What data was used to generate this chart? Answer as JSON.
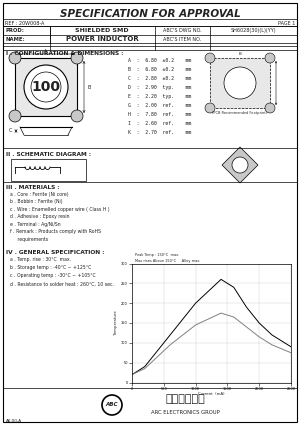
{
  "title": "SPECIFICATION FOR APPROVAL",
  "ref": "REF : 20W008-A",
  "page": "PAGE 1",
  "prod_label": "PROD:",
  "prod_value": "SHIELDED SMD",
  "name_label": "NAME:",
  "name_value": "POWER INDUCTOR",
  "abcs_dwo": "ABC'S DWG NO.",
  "abcs_item": "ABC'S ITEM NO.",
  "item_no": "SH6028(30)(L)(YY)",
  "section1": "I . CONFIGURATION & DIMENSIONS :",
  "dim_labels": [
    "A",
    "B",
    "C",
    "D",
    "E",
    "G",
    "H",
    "I",
    "K"
  ],
  "dim_vals": [
    "6.80",
    "6.80",
    "2.80",
    "2.90",
    "2.20",
    "2.00",
    "7.80",
    "2.60",
    "2.70"
  ],
  "dim_tols": [
    "±0.2",
    "±0.2",
    "±0.2",
    "typ.",
    "typ.",
    "ref.",
    "ref.",
    "ref.",
    "ref."
  ],
  "dim_unit": "mm",
  "section2": "II . SCHEMATIC DIAGRAM :",
  "section3": "III . MATERIALS :",
  "mat_lines": [
    "a . Core : Ferrite (Ni core)",
    "b . Bobbin : Ferrite (Ni)",
    "c . Wire : Enamelled copper wire ( Class H )",
    "d . Adhesive : Epoxy resin",
    "e . Terminal : Ag/Ni/Sn",
    "f . Remark : Products comply with RoHS",
    "     requirements"
  ],
  "section4": "IV . GENERAL SPECIFICATION :",
  "gen_lines": [
    "a . Temp. rise : 30°C  max.",
    "b . Storage temp : -40°C ~ +125°C",
    "c . Operating temp : -30°C ~ +105°C",
    "d . Resistance to solder heat : 260°C, 10 sec."
  ],
  "company_cn": "千和電子集團",
  "company_en": "ARC ELECTRONICS GROUP",
  "doc_ref": "AK-00-A",
  "graph_note1": "Peak Temp : 150°C  max.",
  "graph_note2": "Max rises Above 150°C     Alloy max.",
  "graph_note3": "Max rises Above 150°C     Alloy max.",
  "graph_xlabel": "Current  (mA)",
  "graph_ylabel": "Temperature",
  "bg_color": "#ffffff",
  "border_color": "#000000",
  "text_color": "#222222",
  "gray1": "#e8e8e8",
  "gray2": "#c8c8c8",
  "gray3": "#aaaaaa"
}
